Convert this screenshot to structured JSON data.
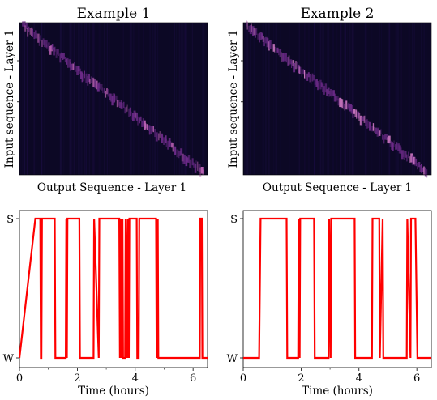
{
  "chart_data": [
    {
      "type": "heatmap",
      "title": "Example 1",
      "xlabel": "Output Sequence - Layer 1",
      "ylabel": "Input sequence - Layer 1",
      "colormap": "magma",
      "grid": false,
      "description_of_pattern": "diagonal",
      "colors": {
        "background": "#0c0825",
        "low": "#241253",
        "mid": "#6e2b8a",
        "high": "#c064b8"
      }
    },
    {
      "type": "heatmap",
      "title": "Example 2",
      "xlabel": "Output Sequence - Layer 1",
      "ylabel": "Input sequence - Layer 1",
      "colormap": "magma",
      "grid": false,
      "colors": {
        "background": "#0c0825",
        "low": "#241253",
        "mid": "#6e2b8a",
        "high": "#d07ac5"
      }
    },
    {
      "type": "line",
      "xlabel": "Time (hours)",
      "ylabel": "",
      "xlim": [
        0,
        6.5
      ],
      "x_ticks": [
        "0",
        "2",
        "4",
        "6"
      ],
      "y_ticks": [
        "W",
        "S"
      ],
      "grid": false,
      "series_color": "#ff0000",
      "series": [
        {
          "x": [
            0,
            0.55,
            0.58,
            0.72,
            0.74,
            0.76,
            0.78,
            1.22,
            1.24,
            1.6,
            1.62,
            1.64,
            1.66,
            2.07,
            2.09,
            2.56,
            2.58,
            2.74,
            2.76,
            3.45,
            3.47,
            3.5,
            3.52,
            3.56,
            3.58,
            3.65,
            3.67,
            3.72,
            3.74,
            3.78,
            3.8,
            4.05,
            4.07,
            4.12,
            4.14,
            4.72,
            4.74,
            4.78,
            4.8,
            6.23,
            6.25,
            6.3,
            6.32,
            6.5
          ],
          "y": [
            "W",
            "S",
            "S",
            "S",
            "W",
            "W",
            "S",
            "S",
            "W",
            "W",
            "S",
            "W",
            "S",
            "S",
            "W",
            "W",
            "S",
            "W",
            "S",
            "S",
            "W",
            "S",
            "W",
            "S",
            "W",
            "W",
            "S",
            "W",
            "S",
            "W",
            "S",
            "S",
            "W",
            "W",
            "S",
            "S",
            "W",
            "S",
            "W",
            "W",
            "S",
            "S",
            "W",
            "W"
          ]
        }
      ]
    },
    {
      "type": "line",
      "xlabel": "Time (hours)",
      "ylabel": "",
      "xlim": [
        0,
        6.5
      ],
      "x_ticks": [
        "0",
        "2",
        "4",
        "6"
      ],
      "y_ticks": [
        "W",
        "S"
      ],
      "grid": false,
      "series_color": "#ff0000",
      "series": [
        {
          "x": [
            0,
            0.55,
            0.6,
            1.5,
            1.52,
            1.9,
            1.92,
            1.95,
            1.97,
            2.45,
            2.47,
            2.95,
            2.97,
            3.02,
            3.04,
            3.85,
            3.87,
            4.45,
            4.47,
            4.7,
            4.72,
            4.82,
            4.84,
            5.65,
            5.67,
            5.78,
            5.8,
            5.95,
            6.02,
            6.5
          ],
          "y": [
            "W",
            "W",
            "S",
            "S",
            "W",
            "W",
            "S",
            "W",
            "S",
            "S",
            "W",
            "W",
            "S",
            "W",
            "S",
            "S",
            "W",
            "W",
            "S",
            "S",
            "W",
            "S",
            "W",
            "W",
            "S",
            "W",
            "S",
            "S",
            "W",
            "W"
          ]
        }
      ]
    }
  ]
}
